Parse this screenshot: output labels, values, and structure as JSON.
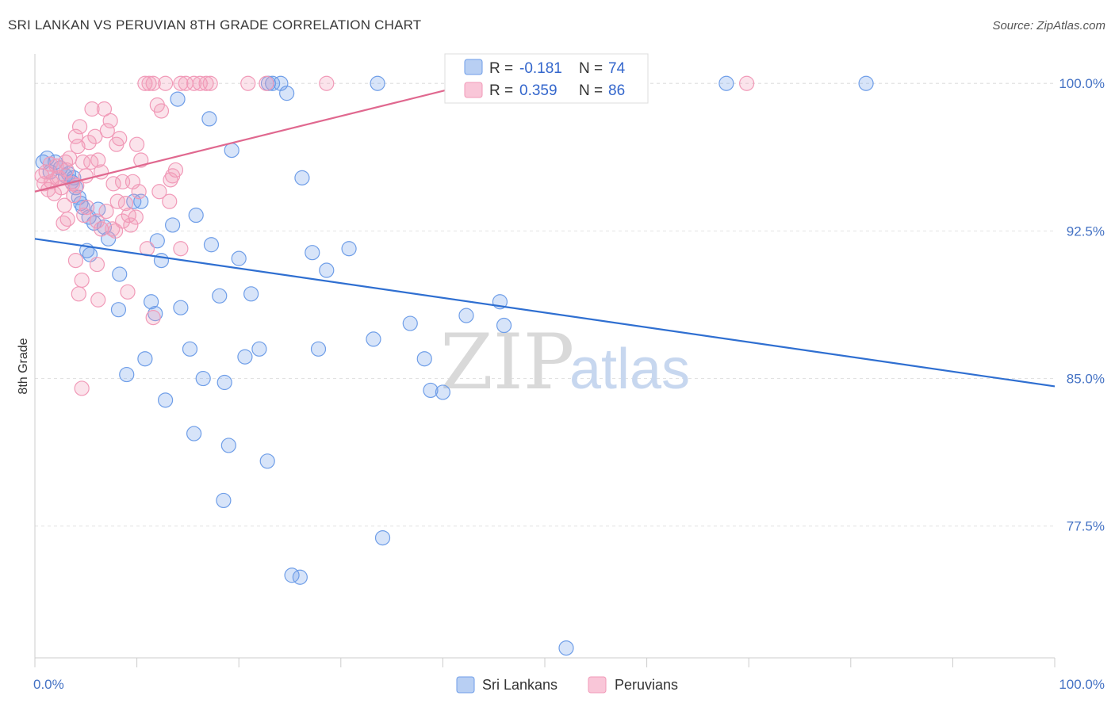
{
  "title": "SRI LANKAN VS PERUVIAN 8TH GRADE CORRELATION CHART",
  "source": "Source: ZipAtlas.com",
  "watermark": {
    "zip": "ZIP",
    "atlas": "atlas"
  },
  "chart_data": {
    "type": "scatter",
    "title": "SRI LANKAN VS PERUVIAN 8TH GRADE CORRELATION CHART",
    "xlabel": "",
    "ylabel": "8th Grade",
    "xlim": [
      0,
      100
    ],
    "ylim": [
      70.8,
      101.5
    ],
    "x_tick_labels": [
      "0.0%",
      "100.0%"
    ],
    "y_ticks": [
      77.5,
      85.0,
      92.5,
      100.0
    ],
    "y_tick_labels": [
      "77.5%",
      "85.0%",
      "92.5%",
      "100.0%"
    ],
    "grid": true,
    "legend_position": "top-center",
    "stats_legend": [
      {
        "r_label": "R =",
        "r_value": "-0.181",
        "n_label": "N =",
        "n_value": "74"
      },
      {
        "r_label": "R =",
        "r_value": "0.359",
        "n_label": "N =",
        "n_value": "86"
      }
    ],
    "series": [
      {
        "name": "Sri Lankans",
        "color": "#6f9ee8",
        "line_color": "#2f6fd1",
        "trend": {
          "x0": 0,
          "y0": 92.1,
          "x1": 100,
          "y1": 84.6
        },
        "points": [
          [
            0.8,
            96.0
          ],
          [
            1.2,
            96.2
          ],
          [
            1.5,
            95.5
          ],
          [
            2.0,
            96.0
          ],
          [
            2.5,
            95.7
          ],
          [
            3.0,
            95.3
          ],
          [
            3.3,
            95.4
          ],
          [
            3.6,
            95.0
          ],
          [
            4.0,
            94.7
          ],
          [
            4.3,
            94.2
          ],
          [
            4.7,
            93.7
          ],
          [
            5.3,
            93.2
          ],
          [
            5.8,
            92.9
          ],
          [
            6.2,
            93.6
          ],
          [
            6.8,
            92.7
          ],
          [
            7.2,
            92.1
          ],
          [
            3.8,
            95.2
          ],
          [
            4.5,
            93.9
          ],
          [
            5.1,
            91.5
          ],
          [
            5.4,
            91.3
          ],
          [
            8.3,
            90.3
          ],
          [
            9.7,
            94.0
          ],
          [
            10.4,
            94.0
          ],
          [
            11.4,
            88.9
          ],
          [
            11.8,
            88.3
          ],
          [
            12.0,
            92.0
          ],
          [
            12.4,
            91.0
          ],
          [
            13.5,
            92.8
          ],
          [
            14.0,
            99.2
          ],
          [
            14.3,
            88.6
          ],
          [
            15.2,
            86.5
          ],
          [
            15.8,
            93.3
          ],
          [
            16.5,
            85.0
          ],
          [
            17.1,
            98.2
          ],
          [
            17.3,
            91.8
          ],
          [
            18.1,
            89.2
          ],
          [
            18.6,
            84.8
          ],
          [
            19.0,
            81.6
          ],
          [
            19.3,
            96.6
          ],
          [
            20.0,
            91.1
          ],
          [
            20.6,
            86.1
          ],
          [
            21.2,
            89.3
          ],
          [
            22.0,
            86.5
          ],
          [
            22.8,
            80.8
          ],
          [
            22.9,
            100.0
          ],
          [
            23.3,
            100.0
          ],
          [
            24.1,
            100.0
          ],
          [
            24.7,
            99.5
          ],
          [
            25.2,
            75.0
          ],
          [
            26.2,
            95.2
          ],
          [
            27.2,
            91.4
          ],
          [
            27.8,
            86.5
          ],
          [
            28.6,
            90.5
          ],
          [
            30.8,
            91.6
          ],
          [
            33.2,
            87.0
          ],
          [
            33.6,
            100.0
          ],
          [
            34.1,
            76.9
          ],
          [
            36.8,
            87.8
          ],
          [
            38.2,
            86.0
          ],
          [
            38.8,
            84.4
          ],
          [
            40.0,
            84.3
          ],
          [
            42.3,
            88.2
          ],
          [
            45.6,
            88.9
          ],
          [
            46.0,
            87.7
          ],
          [
            52.1,
            71.3
          ],
          [
            67.8,
            100.0
          ],
          [
            81.5,
            100.0
          ],
          [
            10.8,
            86.0
          ],
          [
            9.0,
            85.2
          ],
          [
            8.2,
            88.5
          ],
          [
            12.8,
            83.9
          ],
          [
            15.6,
            82.2
          ],
          [
            18.5,
            78.8
          ],
          [
            26.0,
            74.9
          ]
        ]
      },
      {
        "name": "Peruvians",
        "color": "#f19ab8",
        "line_color": "#e0688f",
        "trend": {
          "x0": 0,
          "y0": 94.5,
          "x1": 43.0,
          "y1": 100.0
        },
        "points": [
          [
            0.7,
            95.3
          ],
          [
            0.9,
            94.9
          ],
          [
            1.1,
            95.5
          ],
          [
            1.3,
            94.6
          ],
          [
            1.6,
            95.0
          ],
          [
            1.9,
            94.4
          ],
          [
            2.1,
            95.8
          ],
          [
            2.4,
            95.2
          ],
          [
            2.6,
            94.7
          ],
          [
            2.9,
            93.8
          ],
          [
            3.1,
            95.6
          ],
          [
            3.4,
            96.2
          ],
          [
            3.7,
            94.9
          ],
          [
            4.0,
            97.3
          ],
          [
            4.2,
            96.8
          ],
          [
            4.4,
            97.8
          ],
          [
            4.7,
            96.0
          ],
          [
            5.0,
            95.3
          ],
          [
            5.3,
            97.0
          ],
          [
            5.6,
            98.7
          ],
          [
            5.9,
            97.3
          ],
          [
            6.2,
            96.1
          ],
          [
            6.5,
            95.5
          ],
          [
            6.8,
            98.7
          ],
          [
            7.1,
            97.6
          ],
          [
            7.4,
            98.1
          ],
          [
            7.7,
            94.9
          ],
          [
            8.0,
            96.9
          ],
          [
            8.3,
            97.2
          ],
          [
            8.6,
            95.0
          ],
          [
            8.9,
            93.9
          ],
          [
            9.2,
            93.3
          ],
          [
            9.6,
            95.0
          ],
          [
            10.0,
            96.9
          ],
          [
            10.4,
            96.1
          ],
          [
            10.8,
            100.0
          ],
          [
            11.2,
            100.0
          ],
          [
            11.6,
            100.0
          ],
          [
            12.0,
            98.9
          ],
          [
            12.4,
            98.6
          ],
          [
            12.8,
            100.0
          ],
          [
            13.3,
            95.1
          ],
          [
            13.8,
            95.6
          ],
          [
            14.3,
            100.0
          ],
          [
            14.8,
            100.0
          ],
          [
            15.6,
            100.0
          ],
          [
            16.2,
            100.0
          ],
          [
            16.8,
            100.0
          ],
          [
            17.2,
            100.0
          ],
          [
            20.9,
            100.0
          ],
          [
            22.7,
            100.0
          ],
          [
            28.6,
            100.0
          ],
          [
            69.8,
            100.0
          ],
          [
            4.3,
            89.3
          ],
          [
            4.6,
            90.0
          ],
          [
            6.2,
            89.0
          ],
          [
            6.1,
            90.8
          ],
          [
            9.1,
            89.4
          ],
          [
            11.6,
            88.1
          ],
          [
            14.3,
            91.6
          ],
          [
            4.6,
            84.5
          ],
          [
            2.8,
            92.9
          ],
          [
            3.2,
            93.1
          ],
          [
            4.8,
            93.3
          ],
          [
            5.1,
            93.7
          ],
          [
            6.5,
            92.6
          ],
          [
            7.6,
            92.6
          ],
          [
            9.9,
            93.2
          ],
          [
            11.0,
            91.6
          ],
          [
            13.2,
            94.0
          ],
          [
            3.8,
            94.3
          ],
          [
            4.1,
            94.8
          ],
          [
            5.5,
            96.0
          ],
          [
            6.1,
            93.0
          ],
          [
            7.0,
            93.5
          ],
          [
            8.1,
            94.0
          ],
          [
            8.6,
            93.0
          ],
          [
            9.4,
            92.8
          ],
          [
            2.2,
            95.2
          ],
          [
            1.5,
            95.9
          ],
          [
            3.0,
            96.0
          ],
          [
            10.2,
            94.5
          ],
          [
            12.2,
            94.5
          ],
          [
            13.5,
            95.3
          ],
          [
            4.0,
            91.0
          ],
          [
            7.9,
            92.5
          ]
        ]
      }
    ]
  },
  "legend": {
    "items": [
      "Sri Lankans",
      "Peruvians"
    ]
  }
}
